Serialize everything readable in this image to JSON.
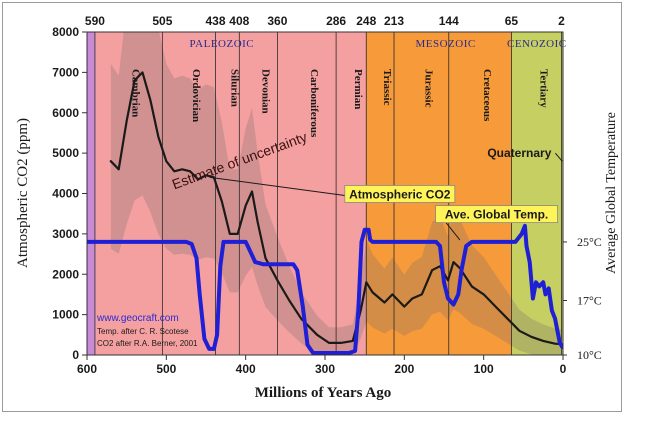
{
  "chart_data": {
    "type": "line",
    "title": "",
    "xlabel": "Millions of Years Ago",
    "ylabel": "Atmospheric CO2 (ppm)",
    "ylabel_right": "Average Global Temperature",
    "xlim": [
      600,
      0
    ],
    "ylim": [
      0,
      8000
    ],
    "x_ticks": [
      "600",
      "500",
      "400",
      "300",
      "200",
      "100",
      "0"
    ],
    "y_ticks": [
      "0",
      "1000",
      "2000",
      "3000",
      "4000",
      "5000",
      "6000",
      "7000",
      "8000"
    ],
    "right_ticks": [
      {
        "label": "25°C",
        "at_ppm": 2800
      },
      {
        "label": "17°C",
        "at_ppm": 1350
      },
      {
        "label": "10°C",
        "at_ppm": 0
      }
    ],
    "boundary_labels": [
      {
        "label": "590",
        "x": 590
      },
      {
        "label": "505",
        "x": 505
      },
      {
        "label": "438",
        "x": 438
      },
      {
        "label": "408",
        "x": 408
      },
      {
        "label": "360",
        "x": 360
      },
      {
        "label": "286",
        "x": 286
      },
      {
        "label": "248",
        "x": 248
      },
      {
        "label": "213",
        "x": 213
      },
      {
        "label": "144",
        "x": 144
      },
      {
        "label": "65",
        "x": 65
      },
      {
        "label": "2",
        "x": 2
      }
    ],
    "eras": [
      {
        "name": "PALEOZOIC",
        "x_center": 430
      },
      {
        "name": "MESOZOIC",
        "x_center": 148
      },
      {
        "name": "CENOZOIC",
        "x_center": 33
      }
    ],
    "periods": [
      {
        "name": "Cambrian",
        "from": 590,
        "to": 505,
        "color": "#f4a0a0"
      },
      {
        "name": "Ordovician",
        "from": 505,
        "to": 438,
        "color": "#f4a0a0"
      },
      {
        "name": "Silurian",
        "from": 438,
        "to": 408,
        "color": "#f4a0a0"
      },
      {
        "name": "Devonian",
        "from": 408,
        "to": 360,
        "color": "#f4a0a0"
      },
      {
        "name": "Carboniferous",
        "from": 360,
        "to": 286,
        "color": "#f4a0a0"
      },
      {
        "name": "Permian",
        "from": 286,
        "to": 248,
        "color": "#f4a0a0"
      },
      {
        "name": "Triassic",
        "from": 248,
        "to": 213,
        "color": "#f79a3a"
      },
      {
        "name": "Jurassic",
        "from": 213,
        "to": 144,
        "color": "#f79a3a"
      },
      {
        "name": "Cretaceous",
        "from": 144,
        "to": 65,
        "color": "#f79a3a"
      },
      {
        "name": "Tertiary",
        "from": 65,
        "to": 2,
        "color": "#c6cf62"
      }
    ],
    "series": [
      {
        "name": "Atmospheric CO2",
        "color": "#1a1a1a",
        "points": [
          [
            570,
            4800
          ],
          [
            560,
            4600
          ],
          [
            550,
            5800
          ],
          [
            540,
            6800
          ],
          [
            530,
            7000
          ],
          [
            520,
            6300
          ],
          [
            510,
            5400
          ],
          [
            500,
            4800
          ],
          [
            490,
            4550
          ],
          [
            480,
            4600
          ],
          [
            470,
            4550
          ],
          [
            460,
            4350
          ],
          [
            450,
            4450
          ],
          [
            440,
            4400
          ],
          [
            430,
            3800
          ],
          [
            420,
            3000
          ],
          [
            410,
            3000
          ],
          [
            400,
            3700
          ],
          [
            392,
            4050
          ],
          [
            385,
            3300
          ],
          [
            375,
            2400
          ],
          [
            360,
            1850
          ],
          [
            345,
            1350
          ],
          [
            330,
            900
          ],
          [
            310,
            500
          ],
          [
            295,
            300
          ],
          [
            280,
            300
          ],
          [
            265,
            350
          ],
          [
            255,
            1100
          ],
          [
            248,
            1800
          ],
          [
            240,
            1550
          ],
          [
            225,
            1300
          ],
          [
            215,
            1500
          ],
          [
            200,
            1200
          ],
          [
            190,
            1400
          ],
          [
            178,
            1500
          ],
          [
            165,
            2100
          ],
          [
            155,
            2200
          ],
          [
            145,
            1850
          ],
          [
            138,
            2300
          ],
          [
            130,
            2150
          ],
          [
            115,
            1700
          ],
          [
            100,
            1500
          ],
          [
            85,
            1200
          ],
          [
            70,
            900
          ],
          [
            55,
            600
          ],
          [
            40,
            450
          ],
          [
            25,
            350
          ],
          [
            10,
            280
          ],
          [
            2,
            270
          ]
        ]
      },
      {
        "name": "Ave. Global Temp.",
        "color": "#1f1fd6",
        "points": [
          [
            600,
            2800
          ],
          [
            475,
            2800
          ],
          [
            468,
            2750
          ],
          [
            462,
            2400
          ],
          [
            458,
            1500
          ],
          [
            452,
            400
          ],
          [
            446,
            150
          ],
          [
            440,
            150
          ],
          [
            436,
            500
          ],
          [
            432,
            2200
          ],
          [
            428,
            2800
          ],
          [
            400,
            2800
          ],
          [
            395,
            2600
          ],
          [
            388,
            2300
          ],
          [
            378,
            2250
          ],
          [
            340,
            2250
          ],
          [
            335,
            2100
          ],
          [
            328,
            1200
          ],
          [
            322,
            250
          ],
          [
            315,
            50
          ],
          [
            270,
            50
          ],
          [
            262,
            100
          ],
          [
            258,
            1100
          ],
          [
            254,
            2800
          ],
          [
            250,
            3100
          ],
          [
            245,
            3100
          ],
          [
            243,
            2850
          ],
          [
            240,
            2800
          ],
          [
            160,
            2800
          ],
          [
            155,
            2700
          ],
          [
            150,
            1800
          ],
          [
            145,
            1400
          ],
          [
            138,
            1250
          ],
          [
            132,
            1500
          ],
          [
            128,
            2100
          ],
          [
            122,
            2700
          ],
          [
            115,
            2800
          ],
          [
            60,
            2800
          ],
          [
            52,
            3000
          ],
          [
            48,
            3200
          ],
          [
            46,
            2700
          ],
          [
            42,
            2300
          ],
          [
            38,
            1400
          ],
          [
            34,
            1800
          ],
          [
            30,
            1700
          ],
          [
            25,
            1800
          ],
          [
            22,
            1500
          ],
          [
            18,
            1650
          ],
          [
            14,
            1100
          ],
          [
            10,
            900
          ],
          [
            7,
            600
          ],
          [
            4,
            300
          ],
          [
            1,
            200
          ]
        ]
      }
    ],
    "annotations": [
      {
        "text": "Estimate of uncertainty",
        "x": 490,
        "y": 4100
      },
      {
        "text": "Atmospheric CO2",
        "x": 270,
        "y": 4100
      },
      {
        "text": "Ave. Global Temp.",
        "x": 85,
        "y": 3700
      },
      {
        "text": "Quaternary",
        "x": 55,
        "y": 4900
      }
    ],
    "credits": [
      "www.geocraft.com",
      "Temp. after C. R. Scotese",
      "CO2 after R.A. Berner, 2001"
    ]
  }
}
